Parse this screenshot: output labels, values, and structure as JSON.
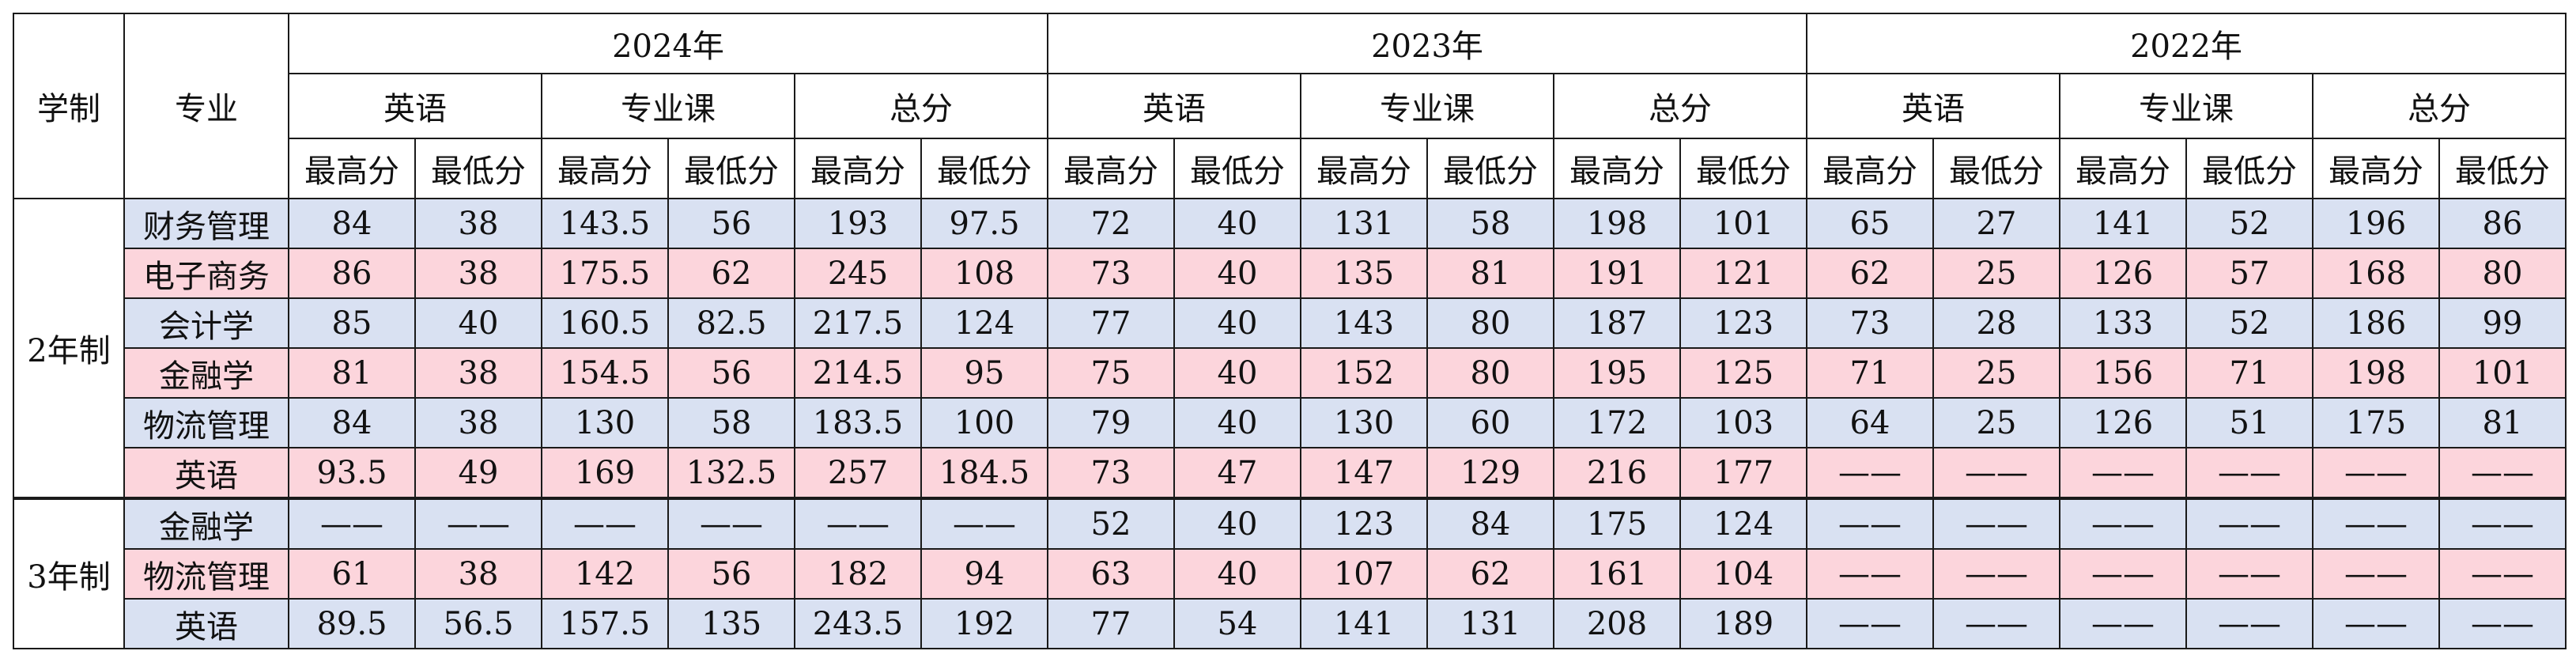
{
  "header": {
    "xuezhi": "学制",
    "zhuanye": "专业",
    "years": [
      "2024年",
      "2023年",
      "2022年"
    ],
    "subjects": [
      "英语",
      "专业课",
      "总分"
    ],
    "max_label": "最高分",
    "min_label": "最低分"
  },
  "groups": [
    {
      "name": "2年制",
      "rows": [
        {
          "major": "财务管理",
          "values": [
            "84",
            "38",
            "143.5",
            "56",
            "193",
            "97.5",
            "72",
            "40",
            "131",
            "58",
            "198",
            "101",
            "65",
            "27",
            "141",
            "52",
            "196",
            "86"
          ]
        },
        {
          "major": "电子商务",
          "values": [
            "86",
            "38",
            "175.5",
            "62",
            "245",
            "108",
            "73",
            "40",
            "135",
            "81",
            "191",
            "121",
            "62",
            "25",
            "126",
            "57",
            "168",
            "80"
          ]
        },
        {
          "major": "会计学",
          "values": [
            "85",
            "40",
            "160.5",
            "82.5",
            "217.5",
            "124",
            "77",
            "40",
            "143",
            "80",
            "187",
            "123",
            "73",
            "28",
            "133",
            "52",
            "186",
            "99"
          ]
        },
        {
          "major": "金融学",
          "values": [
            "81",
            "38",
            "154.5",
            "56",
            "214.5",
            "95",
            "75",
            "40",
            "152",
            "80",
            "195",
            "125",
            "71",
            "25",
            "156",
            "71",
            "198",
            "101"
          ]
        },
        {
          "major": "物流管理",
          "values": [
            "84",
            "38",
            "130",
            "58",
            "183.5",
            "100",
            "79",
            "40",
            "130",
            "60",
            "172",
            "103",
            "64",
            "25",
            "126",
            "51",
            "175",
            "81"
          ]
        },
        {
          "major": "英语",
          "values": [
            "93.5",
            "49",
            "169",
            "132.5",
            "257",
            "184.5",
            "73",
            "47",
            "147",
            "129",
            "216",
            "177",
            "——",
            "——",
            "——",
            "——",
            "——",
            "——"
          ]
        }
      ]
    },
    {
      "name": "3年制",
      "rows": [
        {
          "major": "金融学",
          "values": [
            "——",
            "——",
            "——",
            "——",
            "——",
            "——",
            "52",
            "40",
            "123",
            "84",
            "175",
            "124",
            "——",
            "——",
            "——",
            "——",
            "——",
            "——"
          ]
        },
        {
          "major": "物流管理",
          "values": [
            "61",
            "38",
            "142",
            "56",
            "182",
            "94",
            "63",
            "40",
            "107",
            "62",
            "161",
            "104",
            "——",
            "——",
            "——",
            "——",
            "——",
            "——"
          ]
        },
        {
          "major": "英语",
          "values": [
            "89.5",
            "56.5",
            "157.5",
            "135",
            "243.5",
            "192",
            "77",
            "54",
            "141",
            "131",
            "208",
            "189",
            "——",
            "——",
            "——",
            "——",
            "——",
            "——"
          ]
        }
      ]
    }
  ],
  "colors": {
    "row_blue": "#d9e1f2",
    "row_pink": "#fcd5dc"
  }
}
